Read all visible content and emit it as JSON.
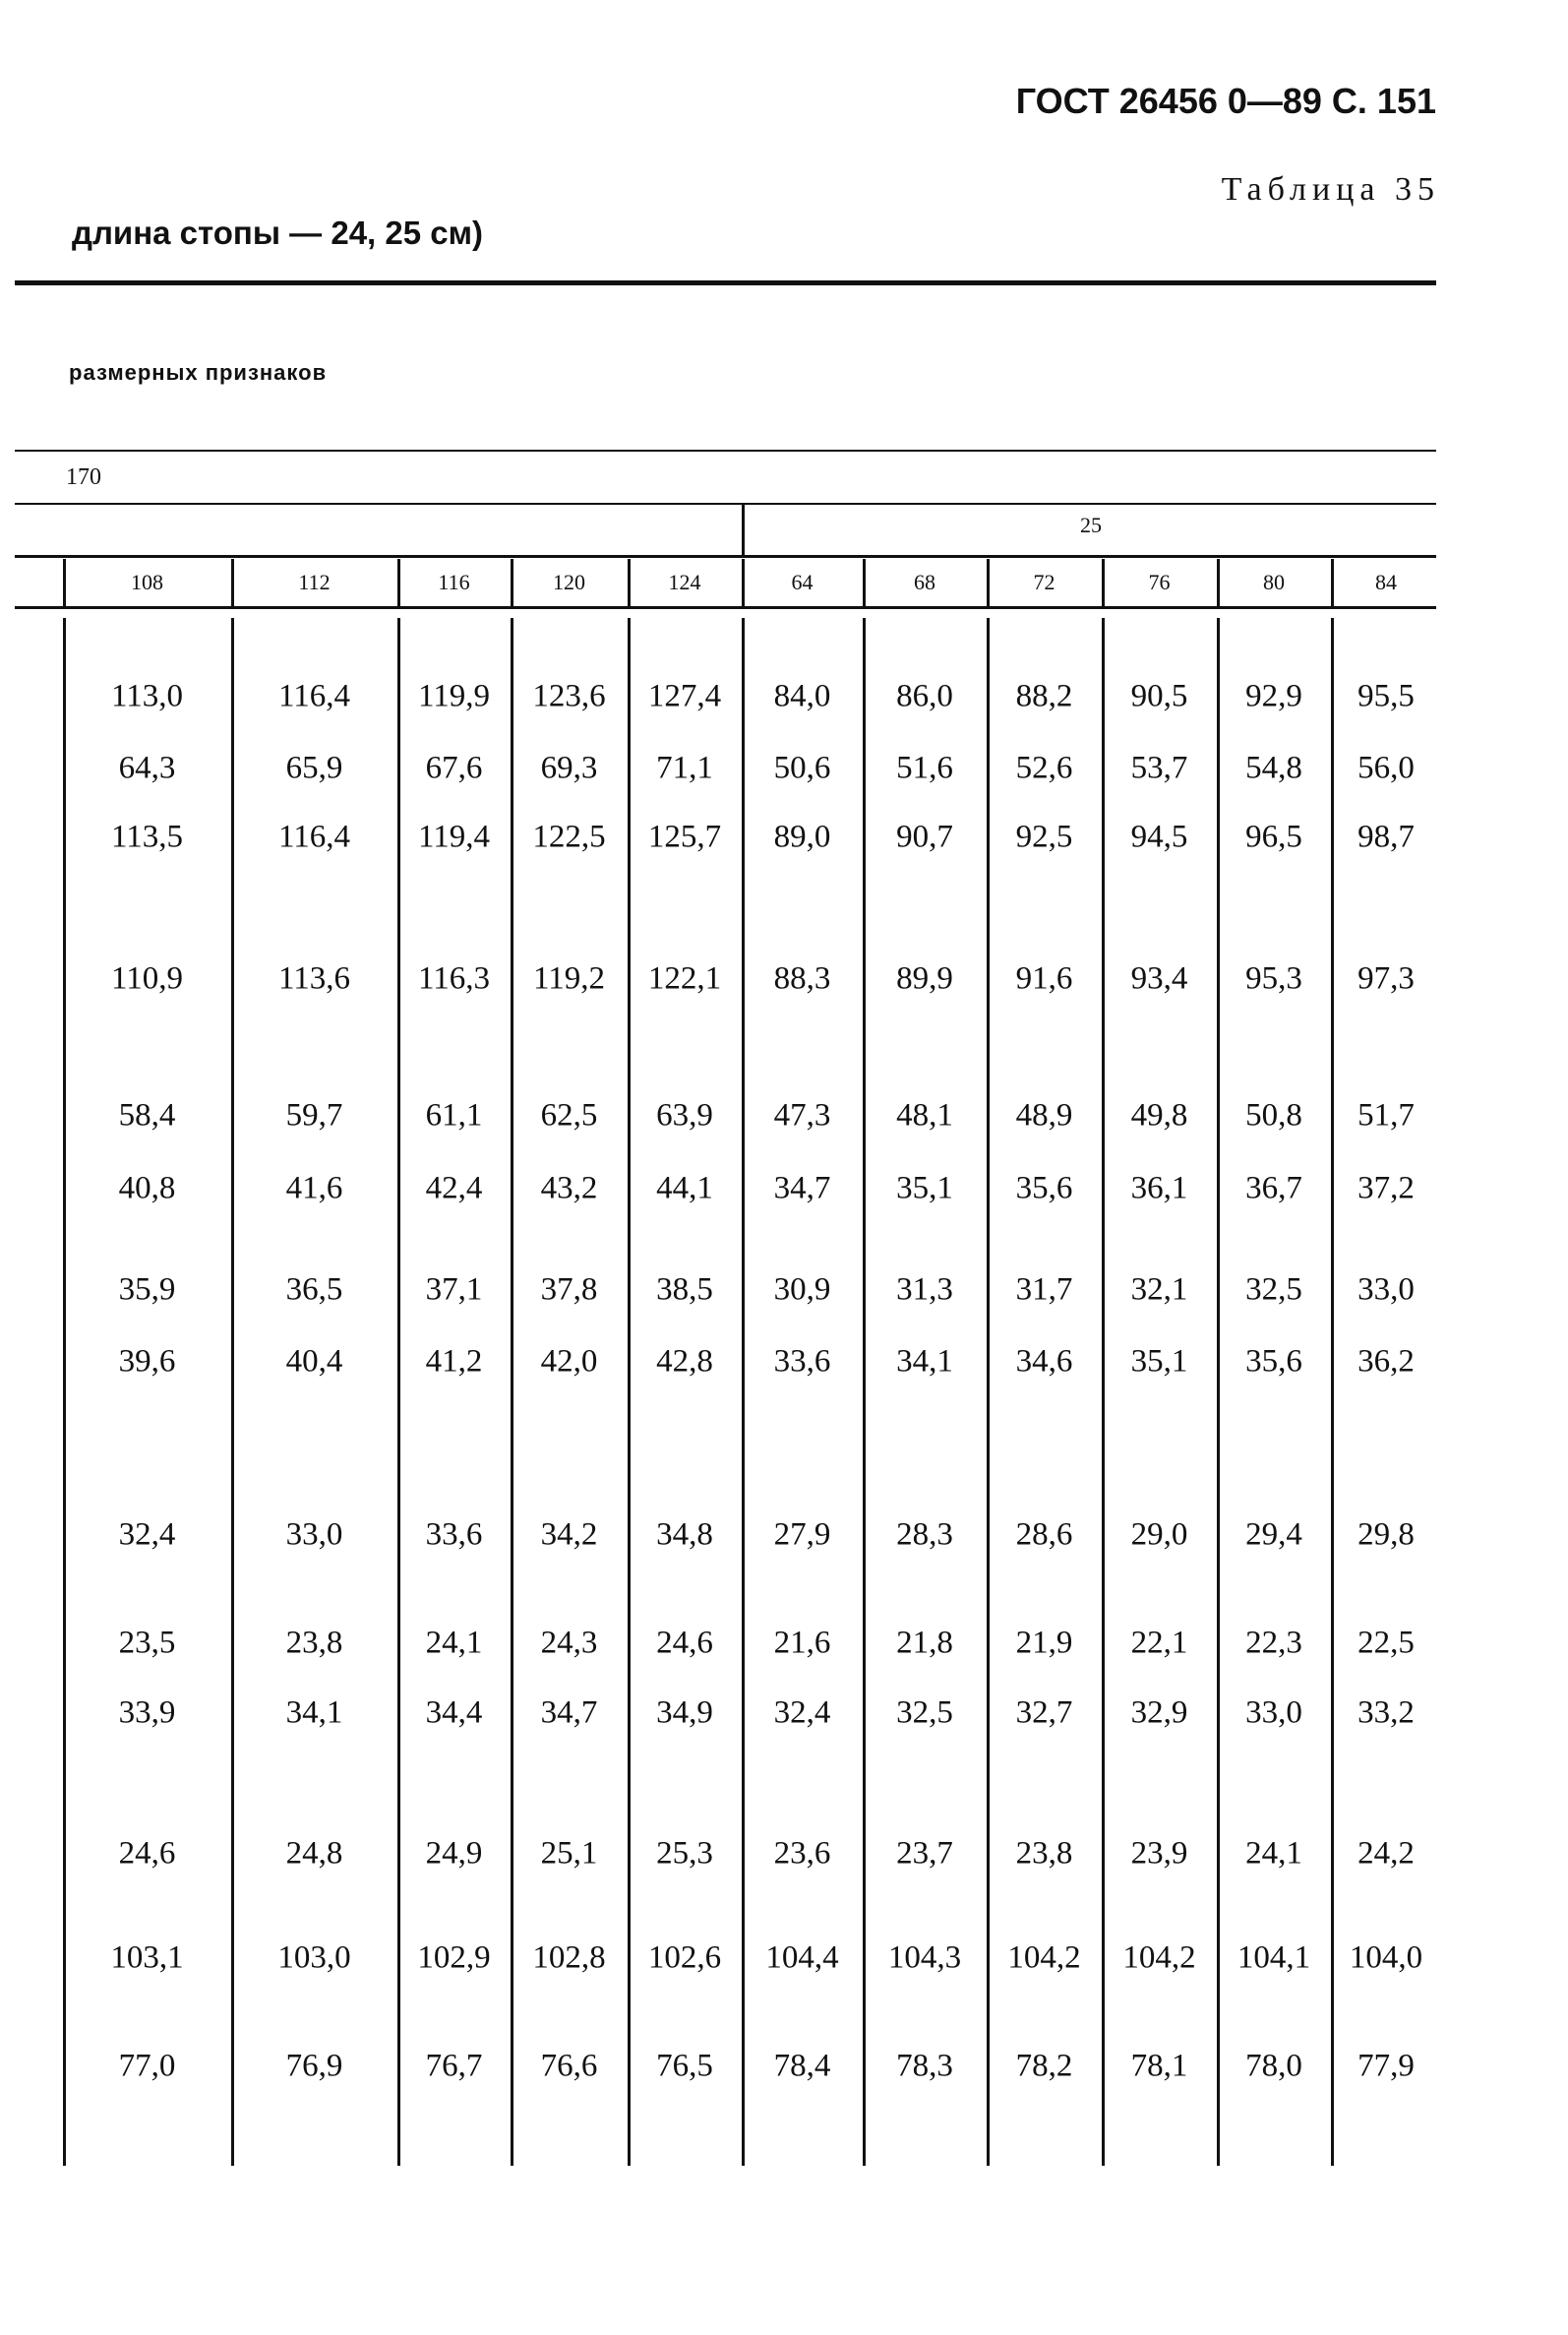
{
  "header": {
    "standard": "ГОСТ 26456 0—89 С. 151",
    "table_label": "Таблица 35",
    "title_fragment": "длина стопы — 24, 25 см)",
    "subtitle_fragment": "размерных признаков"
  },
  "table": {
    "height_label": "170",
    "group_label": "25",
    "columns": [
      "108",
      "112",
      "116",
      "120",
      "124",
      "64",
      "68",
      "72",
      "76",
      "80",
      "84"
    ],
    "rows": [
      [
        "113,0",
        "116,4",
        "119,9",
        "123,6",
        "127,4",
        "84,0",
        "86,0",
        "88,2",
        "90,5",
        "92,9",
        "95,5"
      ],
      [
        "64,3",
        "65,9",
        "67,6",
        "69,3",
        "71,1",
        "50,6",
        "51,6",
        "52,6",
        "53,7",
        "54,8",
        "56,0"
      ],
      [
        "113,5",
        "116,4",
        "119,4",
        "122,5",
        "125,7",
        "89,0",
        "90,7",
        "92,5",
        "94,5",
        "96,5",
        "98,7"
      ],
      [
        "110,9",
        "113,6",
        "116,3",
        "119,2",
        "122,1",
        "88,3",
        "89,9",
        "91,6",
        "93,4",
        "95,3",
        "97,3"
      ],
      [
        "58,4",
        "59,7",
        "61,1",
        "62,5",
        "63,9",
        "47,3",
        "48,1",
        "48,9",
        "49,8",
        "50,8",
        "51,7"
      ],
      [
        "40,8",
        "41,6",
        "42,4",
        "43,2",
        "44,1",
        "34,7",
        "35,1",
        "35,6",
        "36,1",
        "36,7",
        "37,2"
      ],
      [
        "35,9",
        "36,5",
        "37,1",
        "37,8",
        "38,5",
        "30,9",
        "31,3",
        "31,7",
        "32,1",
        "32,5",
        "33,0"
      ],
      [
        "39,6",
        "40,4",
        "41,2",
        "42,0",
        "42,8",
        "33,6",
        "34,1",
        "34,6",
        "35,1",
        "35,6",
        "36,2"
      ],
      [
        "32,4",
        "33,0",
        "33,6",
        "34,2",
        "34,8",
        "27,9",
        "28,3",
        "28,6",
        "29,0",
        "29,4",
        "29,8"
      ],
      [
        "23,5",
        "23,8",
        "24,1",
        "24,3",
        "24,6",
        "21,6",
        "21,8",
        "21,9",
        "22,1",
        "22,3",
        "22,5"
      ],
      [
        "33,9",
        "34,1",
        "34,4",
        "34,7",
        "34,9",
        "32,4",
        "32,5",
        "32,7",
        "32,9",
        "33,0",
        "33,2"
      ],
      [
        "24,6",
        "24,8",
        "24,9",
        "25,1",
        "25,3",
        "23,6",
        "23,7",
        "23,8",
        "23,9",
        "24,1",
        "24,2"
      ],
      [
        "103,1",
        "103,0",
        "102,9",
        "102,8",
        "102,6",
        "104,4",
        "104,3",
        "104,2",
        "104,2",
        "104,1",
        "104,0"
      ],
      [
        "77,0",
        "76,9",
        "76,7",
        "76,6",
        "76,5",
        "78,4",
        "78,3",
        "78,2",
        "78,1",
        "78,0",
        "77,9"
      ]
    ]
  }
}
